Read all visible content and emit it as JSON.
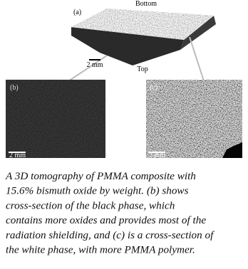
{
  "figure": {
    "panel_a": {
      "label": "(a)",
      "top_label": "Bottom",
      "bottom_label": "Top",
      "scale": "2 mm"
    },
    "panel_b": {
      "label": "(b)",
      "scale": "2 mm"
    },
    "panel_c": {
      "label": "(c)",
      "scale": "2 mm"
    },
    "caption": {
      "lines": [
        "A 3D tomography of PMMA composite with",
        "15.6% bismuth oxide by weight. (b) shows",
        "cross-section of the black phase, which",
        "contains more oxides and provides most of the",
        "radiation shielding, and (c) is a cross-section of",
        "the white phase, with more PMMA polymer."
      ]
    }
  }
}
